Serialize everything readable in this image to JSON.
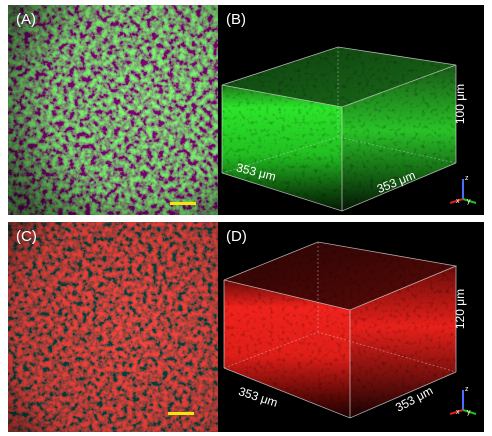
{
  "figure": {
    "panels": [
      {
        "id": "A",
        "label": "(A)",
        "kind": "2d",
        "color": "#3fd63a"
      },
      {
        "id": "B",
        "label": "(B)",
        "kind": "3d",
        "color": "#2ce52a",
        "dims": {
          "x": "353 μm",
          "y": "353 μm",
          "z": "100 μm"
        }
      },
      {
        "id": "C",
        "label": "(C)",
        "kind": "2d",
        "color": "#e8211c"
      },
      {
        "id": "D",
        "label": "(D)",
        "kind": "3d",
        "color": "#f0221c",
        "dims": {
          "x": "353 μm",
          "y": "353 μm",
          "z": "120 μm"
        }
      }
    ],
    "scalebar_color": "#f3e60f",
    "axis_letters": {
      "x": "x",
      "y": "y",
      "z": "z"
    },
    "axis_colors": {
      "x": "#e02020",
      "y": "#20c020",
      "z": "#4a6cff"
    }
  }
}
